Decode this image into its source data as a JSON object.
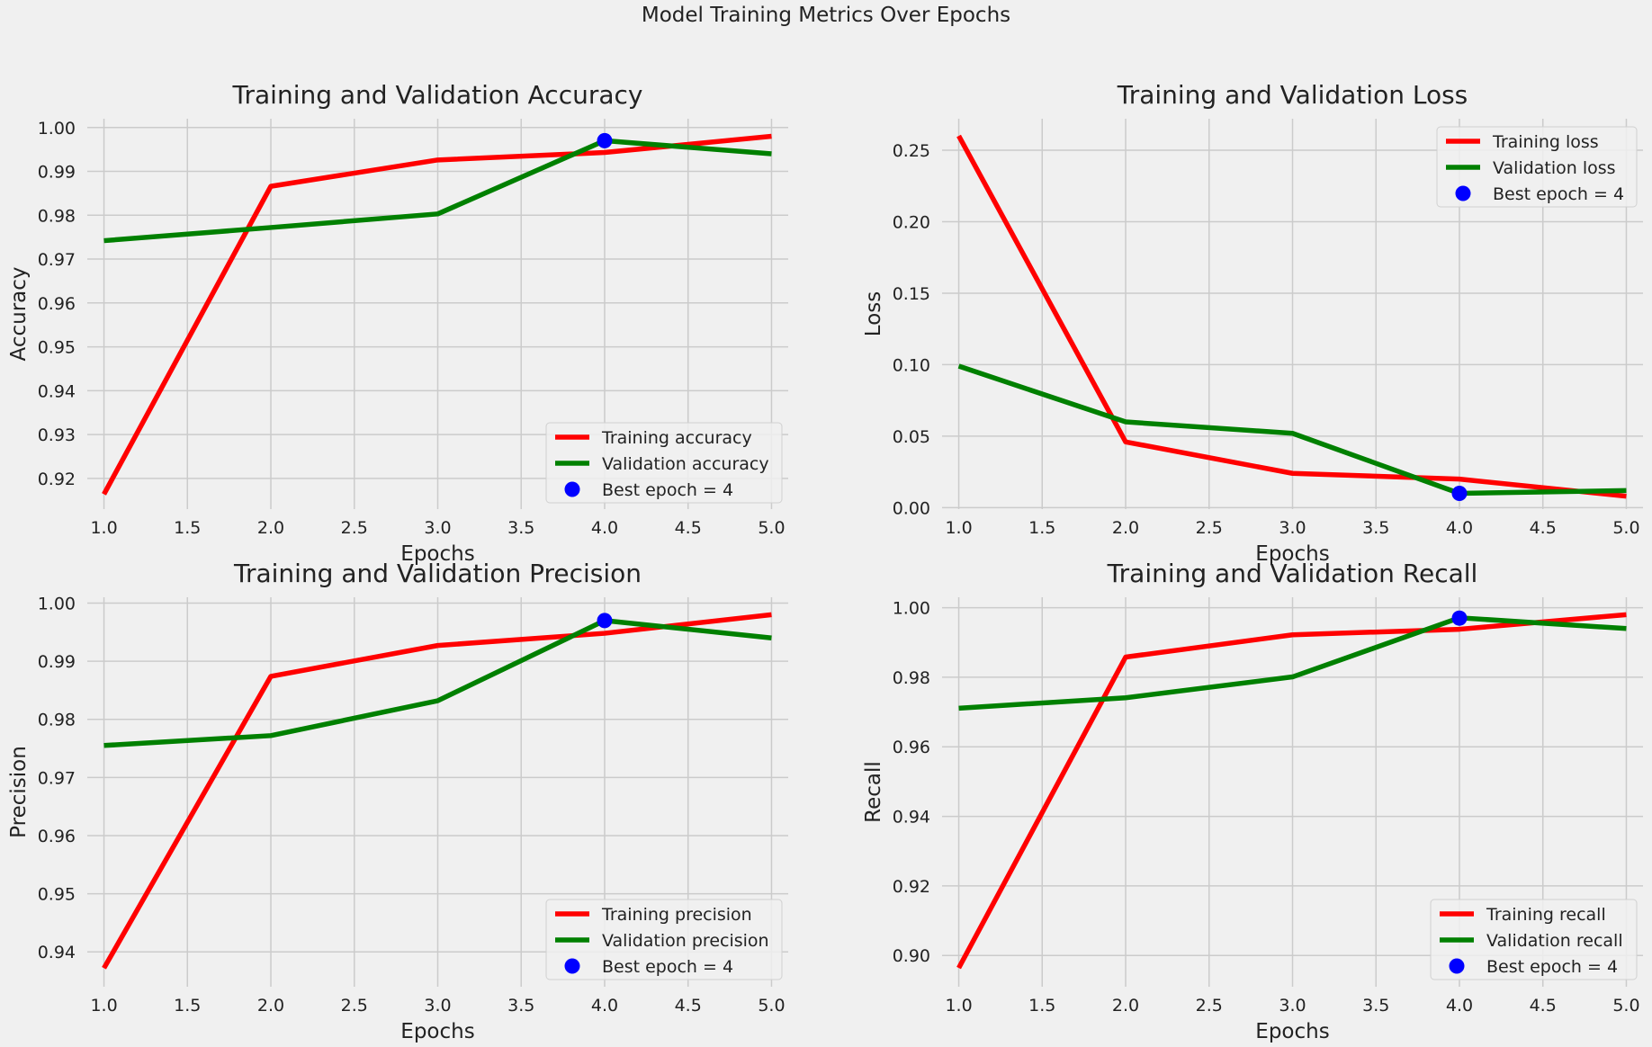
{
  "suptitle": "Model Training Metrics Over Epochs",
  "colors": {
    "train": "#ff0000",
    "val": "#008000",
    "best": "#0000ff",
    "background": "#f0f0f0",
    "grid": "#cbcbcb"
  },
  "chart_data": [
    {
      "type": "line",
      "title": "Training and Validation Accuracy",
      "xlabel": "Epochs",
      "ylabel": "Accuracy",
      "x": [
        1,
        2,
        3,
        4,
        5
      ],
      "xlim": [
        0.9,
        5.1
      ],
      "ylim": [
        0.913,
        1.002
      ],
      "xticks": [
        "1.0",
        "1.5",
        "2.0",
        "2.5",
        "3.0",
        "3.5",
        "4.0",
        "4.5",
        "5.0"
      ],
      "yticks": [
        "0.92",
        "0.93",
        "0.94",
        "0.95",
        "0.96",
        "0.97",
        "0.98",
        "0.99",
        "1.00"
      ],
      "grid": true,
      "legend_position": "lower-right",
      "series": [
        {
          "name": "Training accuracy",
          "color": "#ff0000",
          "values": [
            0.9164,
            0.9866,
            0.9926,
            0.9943,
            0.998
          ]
        },
        {
          "name": "Validation accuracy",
          "color": "#008000",
          "values": [
            0.9742,
            0.9772,
            0.9803,
            0.997,
            0.994
          ]
        }
      ],
      "best_point": {
        "name": "Best epoch = 4",
        "x": 4,
        "y": 0.997
      }
    },
    {
      "type": "line",
      "title": "Training and Validation Loss",
      "xlabel": "Epochs",
      "ylabel": "Loss",
      "x": [
        1,
        2,
        3,
        4,
        5
      ],
      "xlim": [
        0.9,
        5.1
      ],
      "ylim": [
        -0.001,
        0.272
      ],
      "xticks": [
        "1.0",
        "1.5",
        "2.0",
        "2.5",
        "3.0",
        "3.5",
        "4.0",
        "4.5",
        "5.0"
      ],
      "yticks": [
        "0.00",
        "0.05",
        "0.10",
        "0.15",
        "0.20",
        "0.25"
      ],
      "grid": true,
      "legend_position": "upper-right",
      "series": [
        {
          "name": "Training loss",
          "color": "#ff0000",
          "values": [
            0.26,
            0.046,
            0.024,
            0.02,
            0.008
          ]
        },
        {
          "name": "Validation loss",
          "color": "#008000",
          "values": [
            0.099,
            0.06,
            0.052,
            0.01,
            0.012
          ]
        }
      ],
      "best_point": {
        "name": "Best epoch = 4",
        "x": 4,
        "y": 0.01
      }
    },
    {
      "type": "line",
      "title": "Training and Validation Precision",
      "xlabel": "Epochs",
      "ylabel": "Precision",
      "x": [
        1,
        2,
        3,
        4,
        5
      ],
      "xlim": [
        0.9,
        5.1
      ],
      "ylim": [
        0.934,
        1.001
      ],
      "xticks": [
        "1.0",
        "1.5",
        "2.0",
        "2.5",
        "3.0",
        "3.5",
        "4.0",
        "4.5",
        "5.0"
      ],
      "yticks": [
        "0.94",
        "0.95",
        "0.96",
        "0.97",
        "0.98",
        "0.99",
        "1.00"
      ],
      "grid": true,
      "legend_position": "lower-right",
      "series": [
        {
          "name": "Training precision",
          "color": "#ff0000",
          "values": [
            0.9372,
            0.9874,
            0.9927,
            0.9948,
            0.998
          ]
        },
        {
          "name": "Validation precision",
          "color": "#008000",
          "values": [
            0.9755,
            0.9772,
            0.9832,
            0.997,
            0.994
          ]
        }
      ],
      "best_point": {
        "name": "Best epoch = 4",
        "x": 4,
        "y": 0.997
      }
    },
    {
      "type": "line",
      "title": "Training and Validation Recall",
      "xlabel": "Epochs",
      "ylabel": "Recall",
      "x": [
        1,
        2,
        3,
        4,
        5
      ],
      "xlim": [
        0.9,
        5.1
      ],
      "ylim": [
        0.891,
        1.003
      ],
      "xticks": [
        "1.0",
        "1.5",
        "2.0",
        "2.5",
        "3.0",
        "3.5",
        "4.0",
        "4.5",
        "5.0"
      ],
      "yticks": [
        "0.90",
        "0.92",
        "0.94",
        "0.96",
        "0.98",
        "1.00"
      ],
      "grid": true,
      "legend_position": "lower-right",
      "series": [
        {
          "name": "Training recall",
          "color": "#ff0000",
          "values": [
            0.8964,
            0.9858,
            0.9922,
            0.9938,
            0.998
          ]
        },
        {
          "name": "Validation recall",
          "color": "#008000",
          "values": [
            0.9711,
            0.9741,
            0.9801,
            0.9971,
            0.994
          ]
        }
      ],
      "best_point": {
        "name": "Best epoch = 4",
        "x": 4,
        "y": 0.997
      }
    }
  ]
}
